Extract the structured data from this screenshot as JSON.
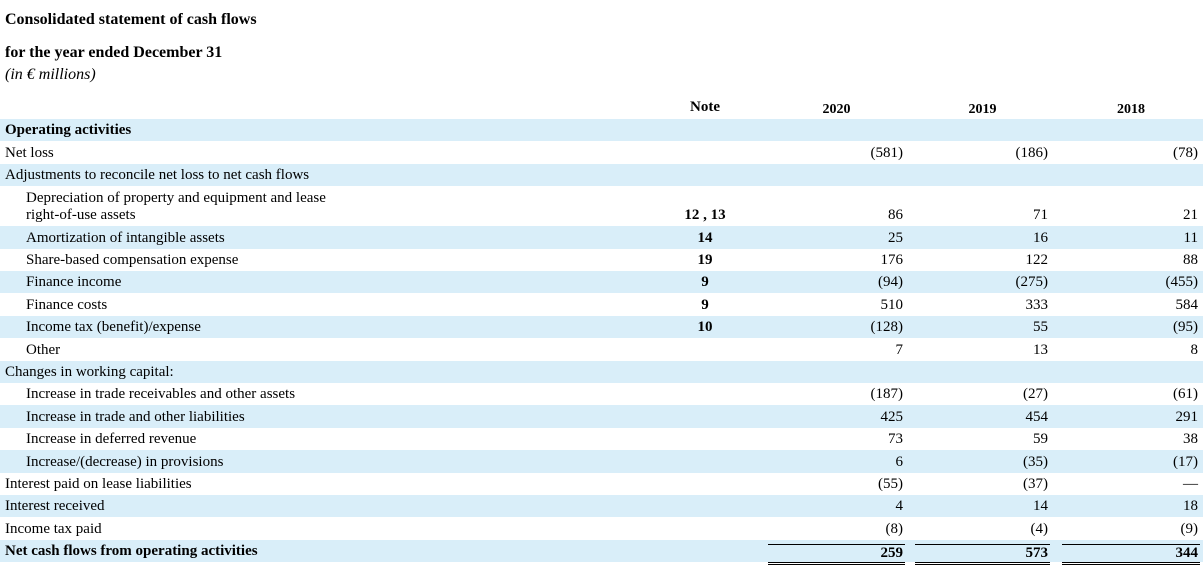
{
  "header": {
    "title": "Consolidated statement of cash flows",
    "subtitle": "for the year ended December 31",
    "unit": "(in € millions)"
  },
  "table": {
    "columns": [
      "Note",
      "2020",
      "2019",
      "2018"
    ],
    "rows": [
      {
        "label": "Operating activities"
      },
      {
        "label": "Net loss",
        "values": [
          "(581)",
          "(186)",
          "(78)"
        ]
      },
      {
        "label": "Adjustments to reconcile net loss to net cash flows"
      },
      {
        "label": "Depreciation of property and equipment and lease\nright-of-use assets",
        "note": "12 , 13",
        "values": [
          "86",
          "71",
          "21"
        ]
      },
      {
        "label": "Amortization of intangible assets",
        "note": "14",
        "values": [
          "25",
          "16",
          "11"
        ]
      },
      {
        "label": "Share-based compensation expense",
        "note": "19",
        "values": [
          "176",
          "122",
          "88"
        ]
      },
      {
        "label": "Finance income",
        "note": "9",
        "values": [
          "(94)",
          "(275)",
          "(455)"
        ]
      },
      {
        "label": "Finance costs",
        "note": "9",
        "values": [
          "510",
          "333",
          "584"
        ]
      },
      {
        "label": "Income tax (benefit)/expense",
        "note": "10",
        "values": [
          "(128)",
          "55",
          "(95)"
        ]
      },
      {
        "label": "Other",
        "values": [
          "7",
          "13",
          "8"
        ]
      },
      {
        "label": "Changes in working capital:"
      },
      {
        "label": "Increase in trade receivables and other assets",
        "values": [
          "(187)",
          "(27)",
          "(61)"
        ]
      },
      {
        "label": "Increase in trade and other liabilities",
        "values": [
          "425",
          "454",
          "291"
        ]
      },
      {
        "label": "Increase in deferred revenue",
        "values": [
          "73",
          "59",
          "38"
        ]
      },
      {
        "label": "Increase/(decrease) in provisions",
        "values": [
          "6",
          "(35)",
          "(17)"
        ]
      },
      {
        "label": "Interest paid on lease liabilities",
        "values": [
          "(55)",
          "(37)",
          "—"
        ]
      },
      {
        "label": "Interest received",
        "values": [
          "4",
          "14",
          "18"
        ]
      },
      {
        "label": "Income tax paid",
        "values": [
          "(8)",
          "(4)",
          "(9)"
        ]
      },
      {
        "label": "Net cash flows from operating activities",
        "values": [
          "259",
          "573",
          "344"
        ]
      }
    ]
  }
}
